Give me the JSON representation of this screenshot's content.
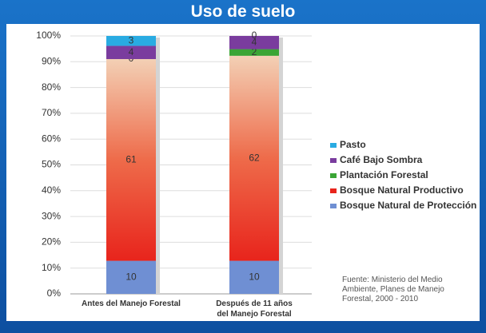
{
  "chart_data": {
    "type": "stacked_percent_bar",
    "title": "Uso de suelo",
    "categories": [
      "Antes del Manejo Forestal",
      "Después de 11 años\ndel Manejo Forestal"
    ],
    "series": [
      {
        "name": "Bosque Natural de Protección",
        "color": "#6f8fd3",
        "values": [
          10,
          10
        ]
      },
      {
        "name": "Bosque Natural Productivo",
        "color": "#e8241c",
        "values": [
          61,
          62
        ]
      },
      {
        "name": "Plantación Forestal",
        "color": "#3aa535",
        "values": [
          0,
          2
        ]
      },
      {
        "name": "Café Bajo Sombra",
        "color": "#7a3c9e",
        "values": [
          4,
          4
        ]
      },
      {
        "name": "Pasto",
        "color": "#29abe2",
        "values": [
          3,
          0
        ]
      }
    ],
    "ylim": [
      0,
      100
    ],
    "yticks": [
      {
        "value": 0,
        "label": "0%"
      },
      {
        "value": 10,
        "label": "10%"
      },
      {
        "value": 20,
        "label": "20%"
      },
      {
        "value": 30,
        "label": "30%"
      },
      {
        "value": 40,
        "label": "40%"
      },
      {
        "value": 50,
        "label": "50%"
      },
      {
        "value": 60,
        "label": "60%"
      },
      {
        "value": 70,
        "label": "70%"
      },
      {
        "value": 80,
        "label": "80%"
      },
      {
        "value": 90,
        "label": "90%"
      },
      {
        "value": 100,
        "label": "100%"
      }
    ],
    "grid": true,
    "legend": "right",
    "source": "Fuente: Ministerio del Medio Ambiente, Planes de Manejo Forestal, 2000 - 2010"
  }
}
